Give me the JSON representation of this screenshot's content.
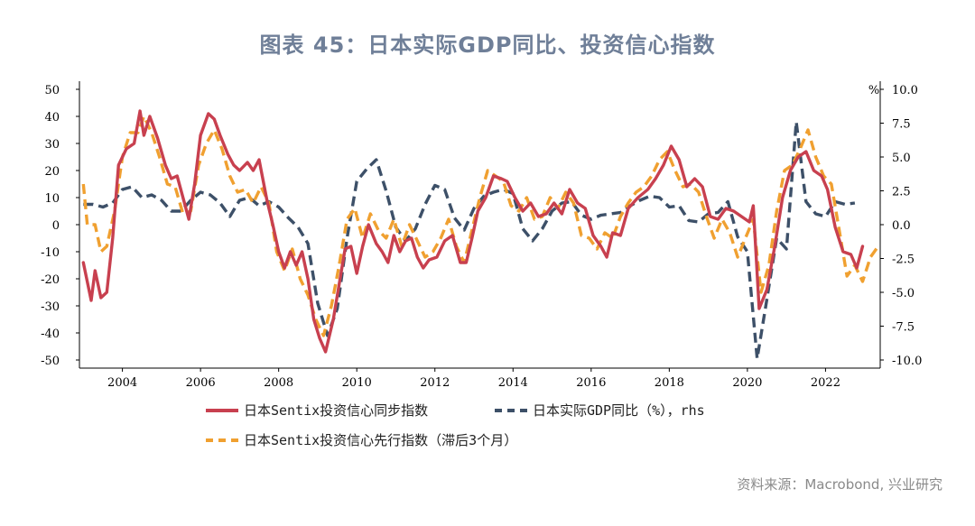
{
  "page": {
    "title": "图表 45：日本实际GDP同比、投资信心指数",
    "source": "资料来源：Macrobond, 兴业研究"
  },
  "chart_data": {
    "type": "line",
    "title": "图表 45：日本实际GDP同比、投资信心指数",
    "xlabel": "",
    "ylabel": "",
    "y2label": "%",
    "xlim": [
      2002.9,
      2023.4
    ],
    "ylim": [
      -53,
      53
    ],
    "y2lim": [
      -10.6,
      10.6
    ],
    "x_ticks": [
      2004,
      2006,
      2008,
      2010,
      2012,
      2014,
      2016,
      2018,
      2020,
      2022
    ],
    "y_ticks": [
      50,
      40,
      30,
      20,
      10,
      0,
      -10,
      -20,
      -30,
      -40,
      -50
    ],
    "y2_ticks": [
      "10.0",
      "7.5",
      "5.0",
      "2.5",
      "0.0",
      "-2.5",
      "-5.0",
      "-7.5",
      "-10.0"
    ],
    "grid": false,
    "legend_position": "bottom",
    "series": [
      {
        "name": "日本Sentix投资信心同步指数",
        "axis": "left",
        "color": "#c8404f",
        "style": "solid",
        "points": [
          [
            2003.0,
            -14
          ],
          [
            2003.2,
            -28
          ],
          [
            2003.3,
            -17
          ],
          [
            2003.45,
            -27
          ],
          [
            2003.6,
            -25
          ],
          [
            2003.75,
            -5
          ],
          [
            2003.9,
            22
          ],
          [
            2004.1,
            28
          ],
          [
            2004.3,
            30
          ],
          [
            2004.45,
            42
          ],
          [
            2004.55,
            33
          ],
          [
            2004.7,
            40
          ],
          [
            2004.9,
            32
          ],
          [
            2005.1,
            22
          ],
          [
            2005.25,
            17
          ],
          [
            2005.4,
            18
          ],
          [
            2005.55,
            10
          ],
          [
            2005.7,
            2
          ],
          [
            2005.85,
            15
          ],
          [
            2006.0,
            33
          ],
          [
            2006.2,
            41
          ],
          [
            2006.35,
            39
          ],
          [
            2006.5,
            33
          ],
          [
            2006.7,
            26
          ],
          [
            2006.85,
            22
          ],
          [
            2007.0,
            20
          ],
          [
            2007.2,
            23
          ],
          [
            2007.35,
            20
          ],
          [
            2007.5,
            24
          ],
          [
            2007.7,
            9
          ],
          [
            2007.85,
            0
          ],
          [
            2008.0,
            -10
          ],
          [
            2008.15,
            -16
          ],
          [
            2008.3,
            -10
          ],
          [
            2008.45,
            -15
          ],
          [
            2008.6,
            -10
          ],
          [
            2008.75,
            -20
          ],
          [
            2008.9,
            -35
          ],
          [
            2009.05,
            -42
          ],
          [
            2009.2,
            -47
          ],
          [
            2009.4,
            -35
          ],
          [
            2009.55,
            -22
          ],
          [
            2009.7,
            -9
          ],
          [
            2009.85,
            -8
          ],
          [
            2010.0,
            -18
          ],
          [
            2010.15,
            -8
          ],
          [
            2010.3,
            0
          ],
          [
            2010.5,
            -7
          ],
          [
            2010.65,
            -10
          ],
          [
            2010.8,
            -14
          ],
          [
            2010.95,
            -4
          ],
          [
            2011.1,
            -10
          ],
          [
            2011.25,
            -6
          ],
          [
            2011.4,
            -5
          ],
          [
            2011.55,
            -12
          ],
          [
            2011.7,
            -16
          ],
          [
            2011.85,
            -13
          ],
          [
            2012.05,
            -12
          ],
          [
            2012.25,
            -6
          ],
          [
            2012.45,
            -4
          ],
          [
            2012.65,
            -14
          ],
          [
            2012.8,
            -14
          ],
          [
            2012.95,
            -5
          ],
          [
            2013.1,
            5
          ],
          [
            2013.3,
            10
          ],
          [
            2013.5,
            18
          ],
          [
            2013.7,
            17
          ],
          [
            2013.85,
            16
          ],
          [
            2014.05,
            10
          ],
          [
            2014.25,
            5
          ],
          [
            2014.45,
            8
          ],
          [
            2014.65,
            3
          ],
          [
            2014.85,
            4
          ],
          [
            2015.05,
            8
          ],
          [
            2015.25,
            4
          ],
          [
            2015.45,
            13
          ],
          [
            2015.65,
            8
          ],
          [
            2015.85,
            6
          ],
          [
            2016.05,
            -4
          ],
          [
            2016.25,
            -8
          ],
          [
            2016.4,
            -12
          ],
          [
            2016.55,
            -3
          ],
          [
            2016.75,
            -4
          ],
          [
            2016.95,
            6
          ],
          [
            2017.2,
            10
          ],
          [
            2017.45,
            13
          ],
          [
            2017.65,
            17
          ],
          [
            2017.85,
            22
          ],
          [
            2018.05,
            29
          ],
          [
            2018.25,
            24
          ],
          [
            2018.45,
            14
          ],
          [
            2018.65,
            17
          ],
          [
            2018.85,
            14
          ],
          [
            2019.05,
            3
          ],
          [
            2019.25,
            2
          ],
          [
            2019.45,
            6
          ],
          [
            2019.65,
            5
          ],
          [
            2019.85,
            3
          ],
          [
            2020.05,
            1
          ],
          [
            2020.15,
            7
          ],
          [
            2020.3,
            -31
          ],
          [
            2020.5,
            -24
          ],
          [
            2020.7,
            -8
          ],
          [
            2020.9,
            10
          ],
          [
            2021.1,
            20
          ],
          [
            2021.3,
            25
          ],
          [
            2021.5,
            27
          ],
          [
            2021.7,
            20
          ],
          [
            2021.9,
            18
          ],
          [
            2022.05,
            13
          ],
          [
            2022.25,
            -1
          ],
          [
            2022.45,
            -10
          ],
          [
            2022.65,
            -11
          ],
          [
            2022.8,
            -16
          ],
          [
            2022.95,
            -8
          ]
        ]
      },
      {
        "name": "日本实际GDP同比（%），rhs",
        "axis": "right",
        "color": "#3d5068",
        "style": "dashed",
        "points": [
          [
            2003.0,
            1.5
          ],
          [
            2003.25,
            1.5
          ],
          [
            2003.5,
            1.3
          ],
          [
            2003.75,
            1.6
          ],
          [
            2004.0,
            2.6
          ],
          [
            2004.25,
            2.8
          ],
          [
            2004.5,
            2.0
          ],
          [
            2004.75,
            2.2
          ],
          [
            2005.0,
            1.8
          ],
          [
            2005.25,
            1.0
          ],
          [
            2005.5,
            1.0
          ],
          [
            2005.75,
            1.8
          ],
          [
            2006.0,
            2.4
          ],
          [
            2006.25,
            2.2
          ],
          [
            2006.5,
            1.6
          ],
          [
            2006.75,
            0.6
          ],
          [
            2007.0,
            1.8
          ],
          [
            2007.25,
            2.0
          ],
          [
            2007.5,
            1.4
          ],
          [
            2007.75,
            1.7
          ],
          [
            2008.0,
            1.3
          ],
          [
            2008.25,
            0.5
          ],
          [
            2008.5,
            -0.2
          ],
          [
            2008.75,
            -1.4
          ],
          [
            2009.0,
            -5.8
          ],
          [
            2009.25,
            -8.2
          ],
          [
            2009.5,
            -6.2
          ],
          [
            2009.75,
            -1.0
          ],
          [
            2010.0,
            3.2
          ],
          [
            2010.25,
            4.1
          ],
          [
            2010.5,
            4.8
          ],
          [
            2010.75,
            2.5
          ],
          [
            2011.0,
            -0.2
          ],
          [
            2011.25,
            -1.2
          ],
          [
            2011.5,
            -0.3
          ],
          [
            2011.75,
            1.5
          ],
          [
            2012.0,
            2.9
          ],
          [
            2012.25,
            2.6
          ],
          [
            2012.5,
            0.5
          ],
          [
            2012.75,
            -0.4
          ],
          [
            2013.0,
            1.2
          ],
          [
            2013.25,
            2.1
          ],
          [
            2013.5,
            2.4
          ],
          [
            2013.75,
            2.6
          ],
          [
            2014.0,
            2.3
          ],
          [
            2014.25,
            -0.3
          ],
          [
            2014.5,
            -1.2
          ],
          [
            2014.75,
            -0.3
          ],
          [
            2015.0,
            1.0
          ],
          [
            2015.25,
            1.6
          ],
          [
            2015.5,
            1.7
          ],
          [
            2015.75,
            0.7
          ],
          [
            2016.0,
            0.4
          ],
          [
            2016.25,
            0.7
          ],
          [
            2016.5,
            0.8
          ],
          [
            2016.75,
            0.9
          ],
          [
            2017.0,
            1.4
          ],
          [
            2017.25,
            1.8
          ],
          [
            2017.5,
            2.1
          ],
          [
            2017.75,
            2.0
          ],
          [
            2018.0,
            1.3
          ],
          [
            2018.25,
            1.4
          ],
          [
            2018.5,
            0.3
          ],
          [
            2018.75,
            0.2
          ],
          [
            2019.0,
            0.8
          ],
          [
            2019.25,
            0.9
          ],
          [
            2019.5,
            1.7
          ],
          [
            2019.75,
            -0.9
          ],
          [
            2020.0,
            -2.0
          ],
          [
            2020.25,
            -9.9
          ],
          [
            2020.5,
            -5.5
          ],
          [
            2020.75,
            -1.0
          ],
          [
            2021.0,
            -1.8
          ],
          [
            2021.25,
            7.6
          ],
          [
            2021.5,
            1.7
          ],
          [
            2021.75,
            0.8
          ],
          [
            2022.0,
            0.6
          ],
          [
            2022.25,
            1.7
          ],
          [
            2022.5,
            1.5
          ],
          [
            2022.75,
            1.6
          ]
        ]
      },
      {
        "name": "日本Sentix投资信心先行指数（滞后3个月）",
        "axis": "left",
        "color": "#f0a030",
        "style": "dashed",
        "points": [
          [
            2003.0,
            15
          ],
          [
            2003.1,
            0
          ],
          [
            2003.3,
            0
          ],
          [
            2003.45,
            -10
          ],
          [
            2003.6,
            -8
          ],
          [
            2003.8,
            5
          ],
          [
            2004.0,
            25
          ],
          [
            2004.2,
            34
          ],
          [
            2004.4,
            34
          ],
          [
            2004.55,
            40
          ],
          [
            2004.75,
            34
          ],
          [
            2004.95,
            25
          ],
          [
            2005.15,
            15
          ],
          [
            2005.35,
            14
          ],
          [
            2005.55,
            4
          ],
          [
            2005.75,
            5
          ],
          [
            2005.95,
            22
          ],
          [
            2006.15,
            30
          ],
          [
            2006.35,
            35
          ],
          [
            2006.55,
            28
          ],
          [
            2006.75,
            18
          ],
          [
            2006.95,
            12
          ],
          [
            2007.15,
            13
          ],
          [
            2007.35,
            8
          ],
          [
            2007.55,
            14
          ],
          [
            2007.75,
            8
          ],
          [
            2007.95,
            -10
          ],
          [
            2008.15,
            -17
          ],
          [
            2008.35,
            -9
          ],
          [
            2008.55,
            -20
          ],
          [
            2008.75,
            -26
          ],
          [
            2008.95,
            -35
          ],
          [
            2009.15,
            -41
          ],
          [
            2009.35,
            -30
          ],
          [
            2009.55,
            -15
          ],
          [
            2009.75,
            2
          ],
          [
            2009.95,
            6
          ],
          [
            2010.15,
            -5
          ],
          [
            2010.35,
            4
          ],
          [
            2010.55,
            -2
          ],
          [
            2010.75,
            -5
          ],
          [
            2010.95,
            2
          ],
          [
            2011.15,
            -8
          ],
          [
            2011.35,
            0
          ],
          [
            2011.55,
            -6
          ],
          [
            2011.75,
            -12
          ],
          [
            2011.95,
            -10
          ],
          [
            2012.15,
            -5
          ],
          [
            2012.35,
            2
          ],
          [
            2012.55,
            -8
          ],
          [
            2012.75,
            -14
          ],
          [
            2012.95,
            -2
          ],
          [
            2013.15,
            10
          ],
          [
            2013.35,
            20
          ],
          [
            2013.55,
            18
          ],
          [
            2013.75,
            16
          ],
          [
            2013.95,
            7
          ],
          [
            2014.15,
            5
          ],
          [
            2014.35,
            10
          ],
          [
            2014.55,
            2
          ],
          [
            2014.75,
            3
          ],
          [
            2014.95,
            10
          ],
          [
            2015.15,
            6
          ],
          [
            2015.35,
            12
          ],
          [
            2015.55,
            8
          ],
          [
            2015.75,
            -4
          ],
          [
            2015.95,
            -5
          ],
          [
            2016.15,
            -9
          ],
          [
            2016.35,
            -3
          ],
          [
            2016.55,
            -5
          ],
          [
            2016.75,
            3
          ],
          [
            2016.95,
            8
          ],
          [
            2017.15,
            12
          ],
          [
            2017.35,
            14
          ],
          [
            2017.55,
            18
          ],
          [
            2017.75,
            24
          ],
          [
            2017.95,
            27
          ],
          [
            2018.15,
            20
          ],
          [
            2018.35,
            14
          ],
          [
            2018.55,
            15
          ],
          [
            2018.75,
            12
          ],
          [
            2018.95,
            3
          ],
          [
            2019.15,
            -5
          ],
          [
            2019.35,
            2
          ],
          [
            2019.55,
            -3
          ],
          [
            2019.75,
            -12
          ],
          [
            2019.95,
            -5
          ],
          [
            2020.15,
            2
          ],
          [
            2020.35,
            -25
          ],
          [
            2020.55,
            -15
          ],
          [
            2020.75,
            5
          ],
          [
            2020.95,
            20
          ],
          [
            2021.15,
            22
          ],
          [
            2021.35,
            28
          ],
          [
            2021.55,
            35
          ],
          [
            2021.75,
            25
          ],
          [
            2021.95,
            18
          ],
          [
            2022.15,
            15
          ],
          [
            2022.35,
            -2
          ],
          [
            2022.55,
            -19
          ],
          [
            2022.75,
            -15
          ],
          [
            2022.95,
            -21
          ],
          [
            2023.15,
            -12
          ],
          [
            2023.35,
            -8
          ]
        ]
      }
    ]
  }
}
